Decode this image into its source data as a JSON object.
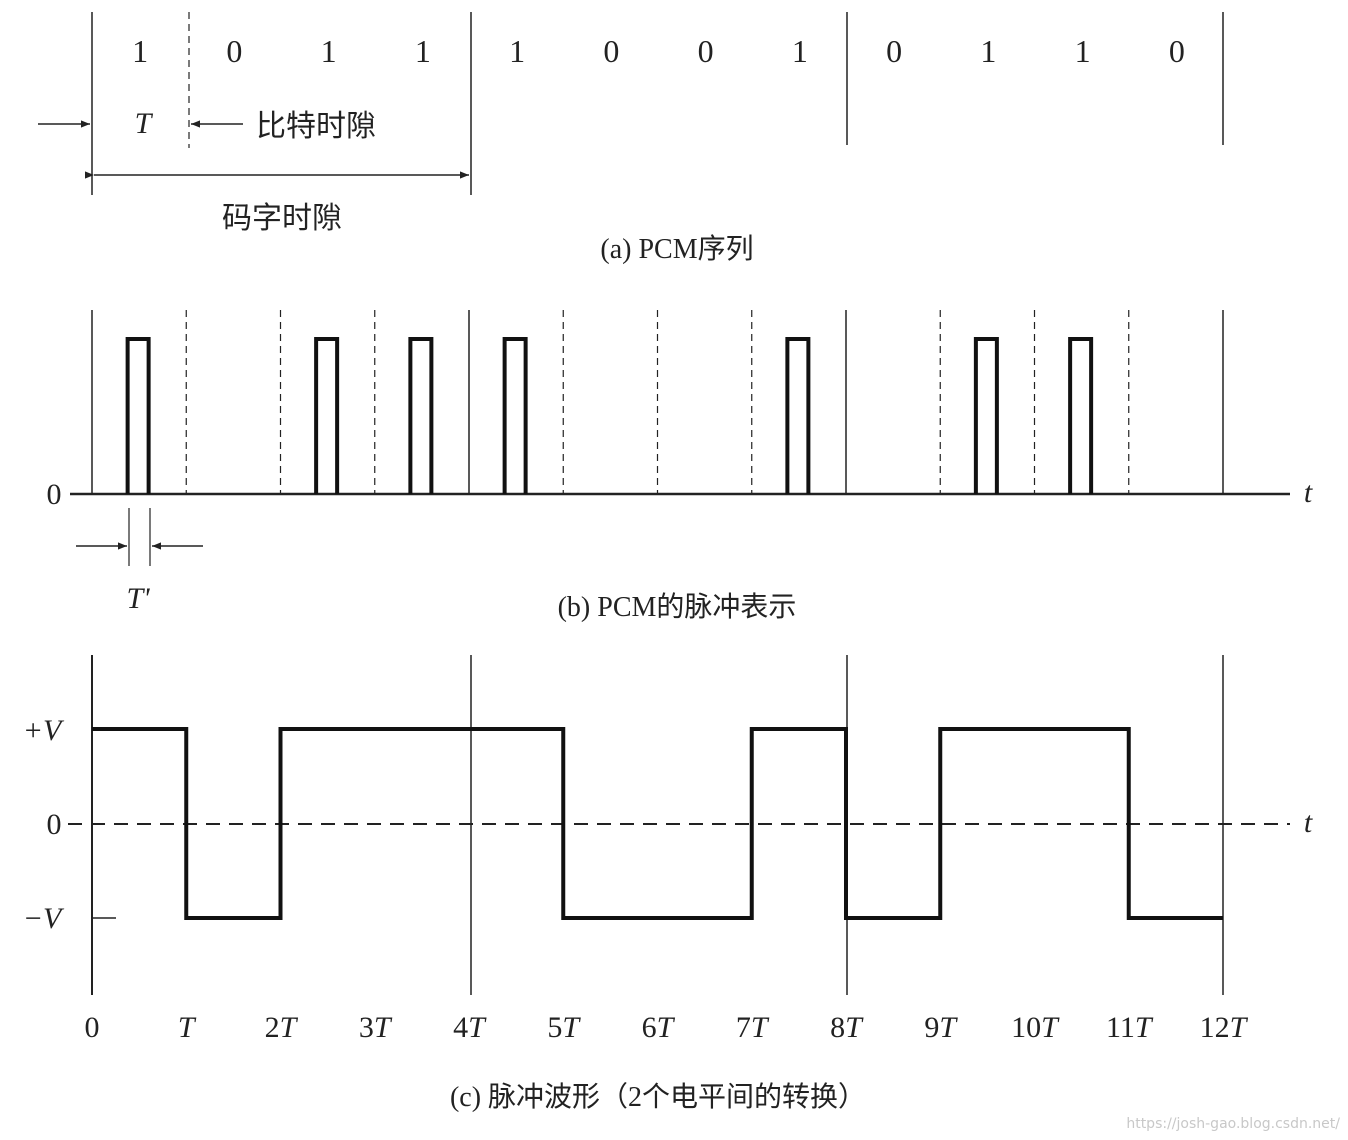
{
  "panel_a": {
    "bits": [
      "1",
      "0",
      "1",
      "1",
      "1",
      "0",
      "0",
      "1",
      "0",
      "1",
      "1",
      "0"
    ],
    "t_label": "T",
    "bit_slot_label": "比特时隙",
    "word_slot_label": "码字时隙",
    "caption": "(a) PCM序列"
  },
  "panel_b": {
    "zero_label": "0",
    "t_axis_label": "t",
    "t_prime_label": "T'",
    "caption": "(b) PCM的脉冲表示"
  },
  "panel_c": {
    "plus_v_label": "+V",
    "zero_label": "0",
    "minus_v_label": "−V",
    "t_axis_label": "t",
    "x_ticks": [
      "0",
      "T",
      "2T",
      "3T",
      "4T",
      "5T",
      "6T",
      "7T",
      "8T",
      "9T",
      "10T",
      "11T",
      "12T"
    ],
    "caption": "(c) 脉冲波形（2个电平间的转换）"
  },
  "watermark": "https://josh-gao.blog.csdn.net/"
}
